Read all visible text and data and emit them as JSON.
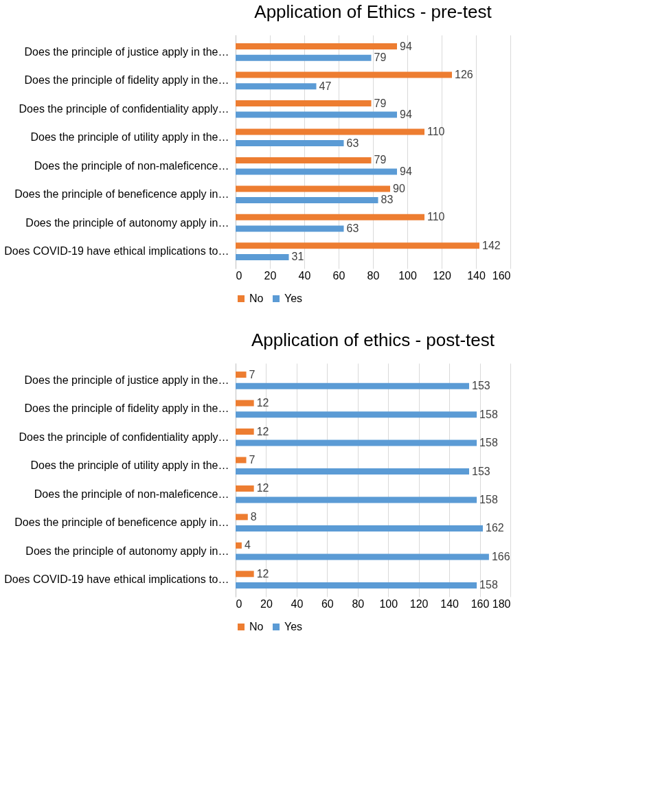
{
  "chart_data": [
    {
      "type": "bar",
      "orientation": "horizontal",
      "title": "Application of Ethics - pre-test",
      "categories": [
        "Does the principle of justice apply in the…",
        "Does the principle of fidelity apply in the…",
        "Does the principle of confidentiality apply…",
        "Does the principle of utility apply in the…",
        "Does the principle of non-maleficence…",
        "Does the principle of beneficence apply in…",
        "Does the principle of autonomy apply in…",
        "Does COVID-19 have ethical implications to…"
      ],
      "series": [
        {
          "name": "No",
          "color": "#ed7d31",
          "values": [
            94,
            126,
            79,
            110,
            79,
            90,
            110,
            142
          ]
        },
        {
          "name": "Yes",
          "color": "#5b9bd5",
          "values": [
            79,
            47,
            94,
            63,
            94,
            83,
            63,
            31
          ]
        }
      ],
      "xlim": [
        0,
        160
      ],
      "xticks": [
        0,
        20,
        40,
        60,
        80,
        100,
        120,
        140,
        160
      ],
      "grid": "x",
      "legend": "bottom",
      "data_labels": true
    },
    {
      "type": "bar",
      "orientation": "horizontal",
      "title": "Application of ethics - post-test",
      "categories": [
        "Does the principle of justice apply in the…",
        "Does the principle of fidelity apply in the…",
        "Does the principle of confidentiality apply…",
        "Does the principle of utility apply in the…",
        "Does the principle of non-maleficence…",
        "Does the principle of beneficence apply in…",
        "Does the principle of autonomy apply in…",
        "Does COVID-19 have ethical implications to…"
      ],
      "series": [
        {
          "name": "No",
          "color": "#ed7d31",
          "values": [
            7,
            12,
            12,
            7,
            12,
            8,
            4,
            12
          ]
        },
        {
          "name": "Yes",
          "color": "#5b9bd5",
          "values": [
            153,
            158,
            158,
            153,
            158,
            162,
            166,
            158
          ]
        }
      ],
      "xlim": [
        0,
        180
      ],
      "xticks": [
        0,
        20,
        40,
        60,
        80,
        100,
        120,
        140,
        160,
        180
      ],
      "grid": "x",
      "legend": "bottom",
      "data_labels": true
    }
  ]
}
